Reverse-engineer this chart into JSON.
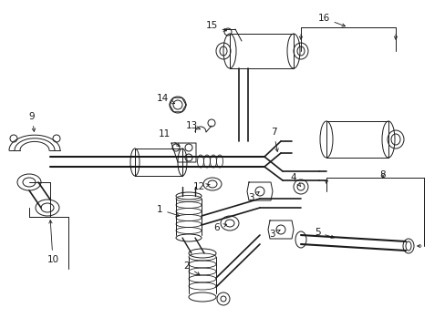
{
  "bg_color": "#ffffff",
  "line_color": "#1a1a1a",
  "figsize": [
    4.89,
    3.6
  ],
  "dpi": 100,
  "label_fs": 7.5,
  "lw": 0.7
}
